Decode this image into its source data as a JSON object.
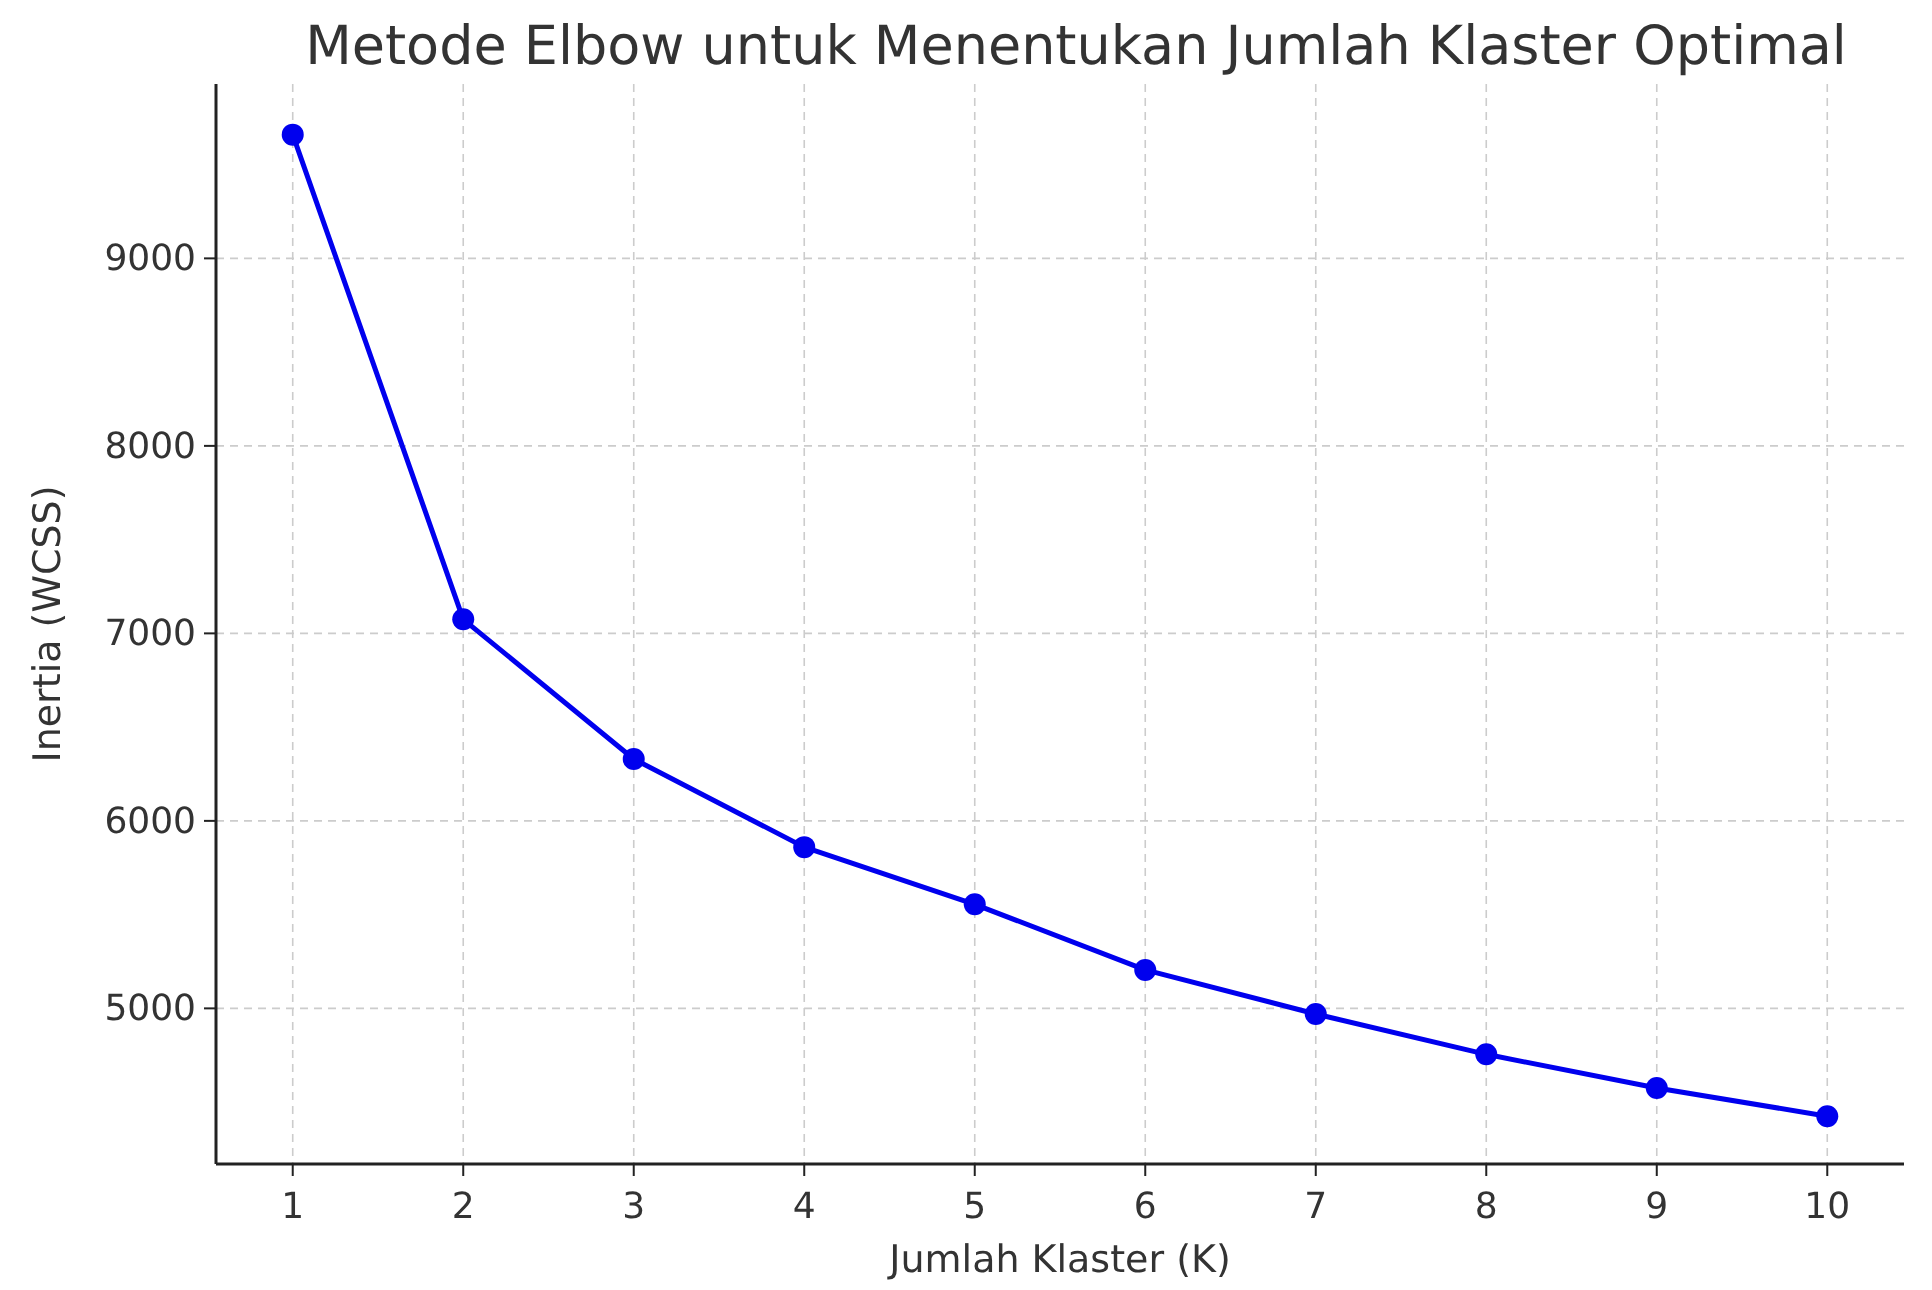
{
  "chart_data": {
    "type": "line",
    "title": "Metode Elbow untuk Menentukan Jumlah Klaster Optimal",
    "xlabel": "Jumlah Klaster (K)",
    "ylabel": "Inertia (WCSS)",
    "x": [
      1,
      2,
      3,
      4,
      5,
      6,
      7,
      8,
      9,
      10
    ],
    "series": [
      {
        "color": "#0000ee",
        "values": [
          9660,
          7075,
          6330,
          5860,
          5555,
          5205,
          4970,
          4755,
          4575,
          4425
        ]
      }
    ],
    "xlim": [
      0.55,
      10.45
    ],
    "xticks": [
      1,
      2,
      3,
      4,
      5,
      6,
      7,
      8,
      9,
      10
    ],
    "ylim": [
      4170,
      9930
    ],
    "yticks": [
      5000,
      6000,
      7000,
      8000,
      9000
    ],
    "grid": true,
    "marker": "circle",
    "line_style": "solid"
  }
}
